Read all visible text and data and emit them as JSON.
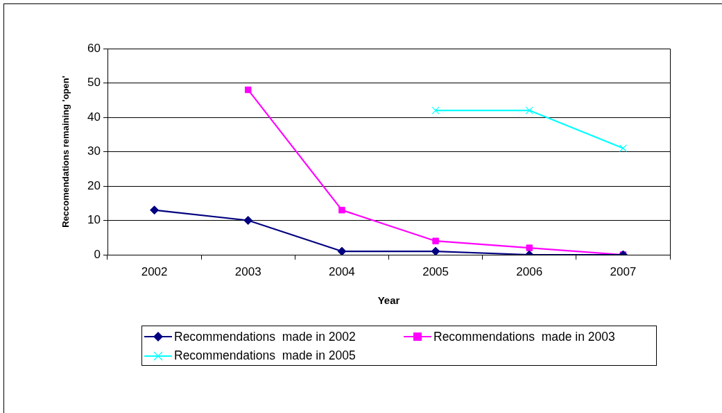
{
  "chart_data": {
    "type": "line",
    "xlabel": "Year",
    "ylabel": "Reccomendations remaining 'open'",
    "categories": [
      "2002",
      "2003",
      "2004",
      "2005",
      "2006",
      "2007"
    ],
    "series": [
      {
        "name": "Recommendations  made in 2002",
        "color": "#000080",
        "marker": "diamond",
        "values": [
          13,
          10,
          1,
          1,
          0,
          0
        ]
      },
      {
        "name": "Recommendations  made in 2003",
        "color": "#ff00ff",
        "marker": "square",
        "values": [
          null,
          48,
          13,
          4,
          2,
          0
        ]
      },
      {
        "name": "Recommendations  made in 2005",
        "color": "#00ffff",
        "marker": "cross",
        "values": [
          null,
          null,
          null,
          42,
          42,
          31
        ]
      }
    ],
    "ylim": [
      0,
      60
    ],
    "yticks": [
      0,
      10,
      20,
      30,
      40,
      50,
      60
    ],
    "grid": "y",
    "legend": "bottom"
  }
}
